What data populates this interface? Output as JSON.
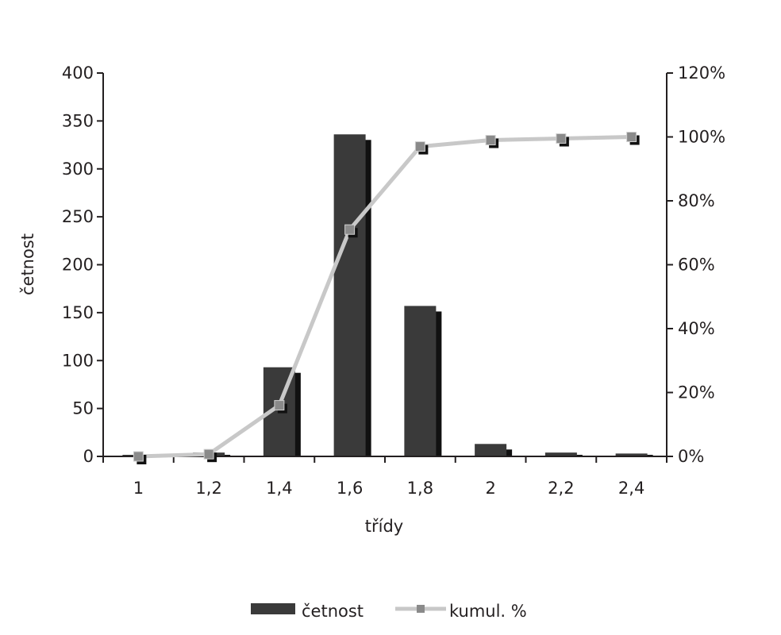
{
  "chart_data": {
    "type": "bar",
    "categories": [
      "1",
      "1,2",
      "1,4",
      "1,6",
      "1,8",
      "2",
      "2,2",
      "2,4"
    ],
    "xlabel": "třídy",
    "ylabel": "četnost",
    "ylim": [
      0,
      400
    ],
    "yticks": [
      "0",
      "50",
      "100",
      "150",
      "200",
      "250",
      "300",
      "350",
      "400"
    ],
    "y2lim": [
      0,
      1.2
    ],
    "y2ticks": [
      "0%",
      "20%",
      "40%",
      "60%",
      "80%",
      "100%",
      "120%"
    ],
    "grid": false,
    "legend_position": "bottom",
    "series": [
      {
        "name": "četnost",
        "kind": "bar",
        "axis": "left",
        "color": "#3a3a3a",
        "values": [
          0,
          4,
          93,
          336,
          157,
          13,
          4,
          3
        ]
      },
      {
        "name": "kumul. %",
        "kind": "line",
        "axis": "right",
        "color": "#c8c8c8",
        "marker_color": "#8a8a8a",
        "values": [
          0.0,
          0.007,
          0.16,
          0.71,
          0.97,
          0.99,
          0.995,
          1.0
        ]
      }
    ]
  }
}
